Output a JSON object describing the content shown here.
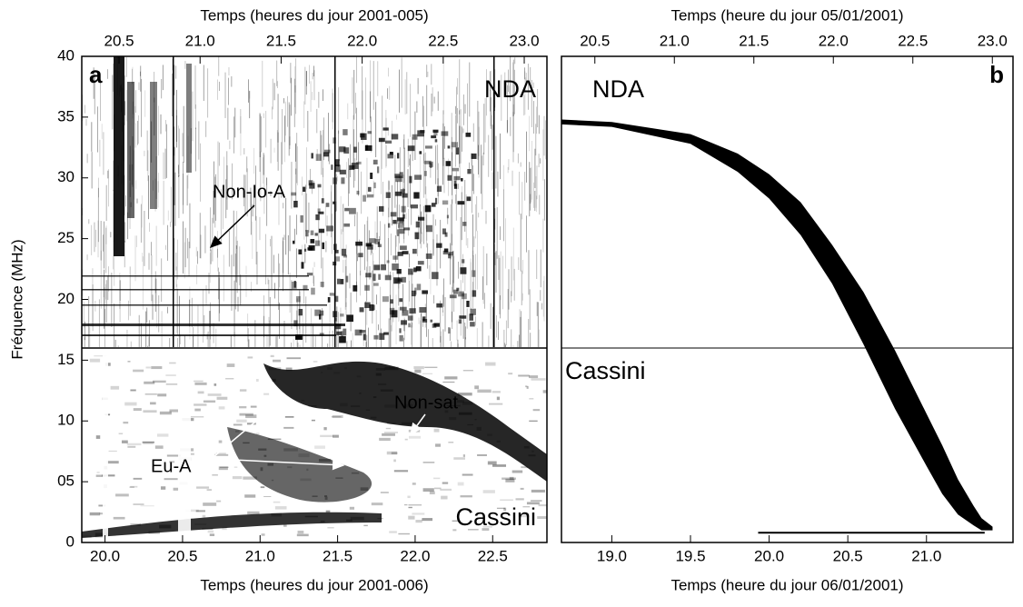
{
  "chart_data": [
    {
      "type": "spectrogram",
      "x_label_top": "Temps (heures du jour 2001-005)",
      "x_label": "Temps (heures du jour 2001-006)",
      "y_label": "Fréquence (MHz)",
      "xlim_top": [
        20.27,
        23.14
      ],
      "xticks_top": [
        20.5,
        {
          "value": 21,
          "label": "21.0"
        },
        21.5,
        {
          "value": 22,
          "label": "22.0"
        },
        22.5,
        {
          "value": 23,
          "label": "23.0"
        }
      ],
      "xlim": [
        19.85,
        22.85
      ],
      "xticks": [
        {
          "value": 20,
          "label": "20.0"
        },
        20.5,
        {
          "value": 21,
          "label": "21.0"
        },
        21.5,
        {
          "value": 22,
          "label": "22.0"
        },
        22.5
      ],
      "ylim": [
        0,
        40
      ],
      "yticks": [
        0,
        {
          "value": 5,
          "label": "05"
        },
        10,
        15,
        20,
        25,
        30,
        35,
        40
      ],
      "panel_label": "a",
      "annotations": [
        "NDA",
        "Non-Io-A",
        "Eu-A",
        "Non-sat",
        "Cassini"
      ]
    },
    {
      "type": "band",
      "x_label_top": "Temps (heure du jour 05/01/2001)",
      "x_label": "Temps (heure du jour 06/01/2001)",
      "xlim_top": [
        20.29,
        23.13
      ],
      "xticks_top": [
        20.5,
        {
          "value": 21,
          "label": "21.0"
        },
        21.5,
        {
          "value": 22,
          "label": "22.0"
        },
        22.5,
        {
          "value": 23,
          "label": "23.0"
        }
      ],
      "xlim": [
        18.68,
        21.55
      ],
      "xticks": [
        {
          "value": 19,
          "label": "19.0"
        },
        19.5,
        {
          "value": 20,
          "label": "20.0"
        },
        20.5,
        {
          "value": 21,
          "label": "21.0"
        }
      ],
      "ylim": [
        0,
        40
      ],
      "panel_label": "b",
      "annotations": [
        "NDA",
        "Cassini"
      ],
      "color": "#000000",
      "x": [
        18.68,
        19.0,
        19.5,
        19.8,
        20.0,
        20.2,
        20.4,
        20.6,
        20.8,
        21.0,
        21.1,
        21.2,
        21.3,
        21.35,
        21.42
      ],
      "upper": [
        34.8,
        34.6,
        33.6,
        32.0,
        30.3,
        28.0,
        24.5,
        20.6,
        15.8,
        10.6,
        8.0,
        5.2,
        3.0,
        2.0,
        1.3
      ],
      "lower": [
        34.4,
        34.2,
        32.8,
        30.5,
        28.3,
        25.3,
        21.3,
        16.3,
        11.0,
        6.3,
        4.0,
        2.3,
        1.4,
        1.0,
        1.0
      ],
      "line": {
        "x": [
          19.93,
          21.37
        ],
        "values": [
          0.8,
          0.8
        ]
      }
    }
  ]
}
